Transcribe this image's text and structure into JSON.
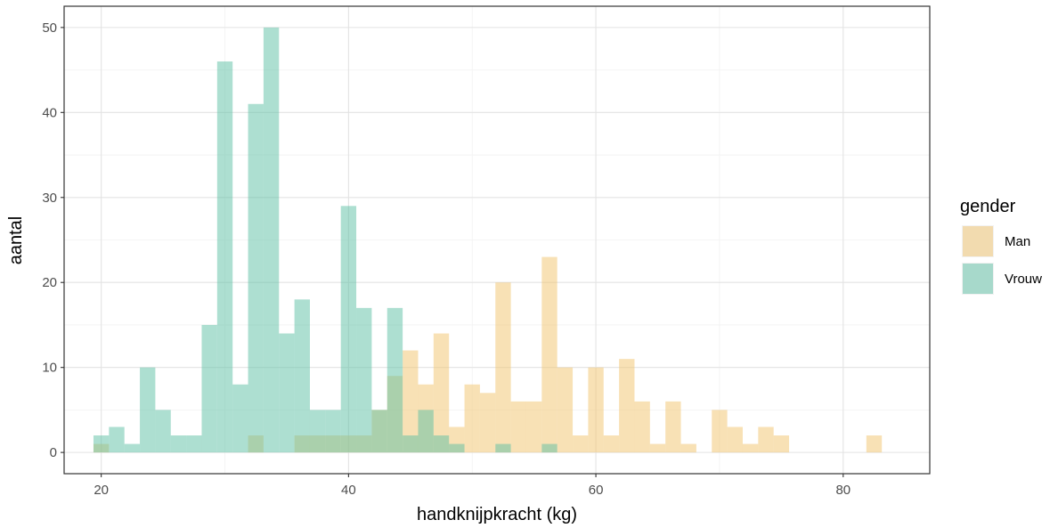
{
  "chart_data": {
    "type": "histogram",
    "xlabel": "handknijpkracht (kg)",
    "ylabel": "aantal",
    "xlim": [
      17,
      87
    ],
    "ylim": [
      -2.5,
      52.5
    ],
    "x_ticks": [
      20,
      40,
      60,
      80
    ],
    "y_ticks": [
      0,
      10,
      20,
      30,
      40,
      50
    ],
    "grid": true,
    "legend_position": "right",
    "legend_title": "gender",
    "bin_width": 1.25,
    "bin_start": 20,
    "series": [
      {
        "name": "Man",
        "color": "#F2C36B",
        "values": [
          1,
          0,
          0,
          0,
          0,
          0,
          0,
          0,
          0,
          0,
          2,
          0,
          0,
          2,
          2,
          2,
          2,
          2,
          5,
          9,
          12,
          8,
          14,
          3,
          8,
          7,
          20,
          6,
          6,
          23,
          10,
          2,
          10,
          2,
          11,
          6,
          1,
          6,
          1,
          0,
          5,
          3,
          1,
          3,
          2,
          0,
          0,
          0,
          0,
          0,
          2,
          0,
          0,
          0,
          0,
          0,
          0,
          0,
          0,
          0,
          0,
          0,
          0,
          0,
          0,
          0,
          0,
          0,
          0,
          0,
          2
        ]
      },
      {
        "name": "Vrouw",
        "color": "#5BC0A4",
        "values": [
          2,
          3,
          1,
          10,
          5,
          2,
          2,
          15,
          46,
          8,
          41,
          50,
          14,
          18,
          5,
          5,
          29,
          17,
          5,
          17,
          2,
          5,
          2,
          1,
          0,
          0,
          1,
          0,
          0,
          1
        ]
      }
    ]
  }
}
